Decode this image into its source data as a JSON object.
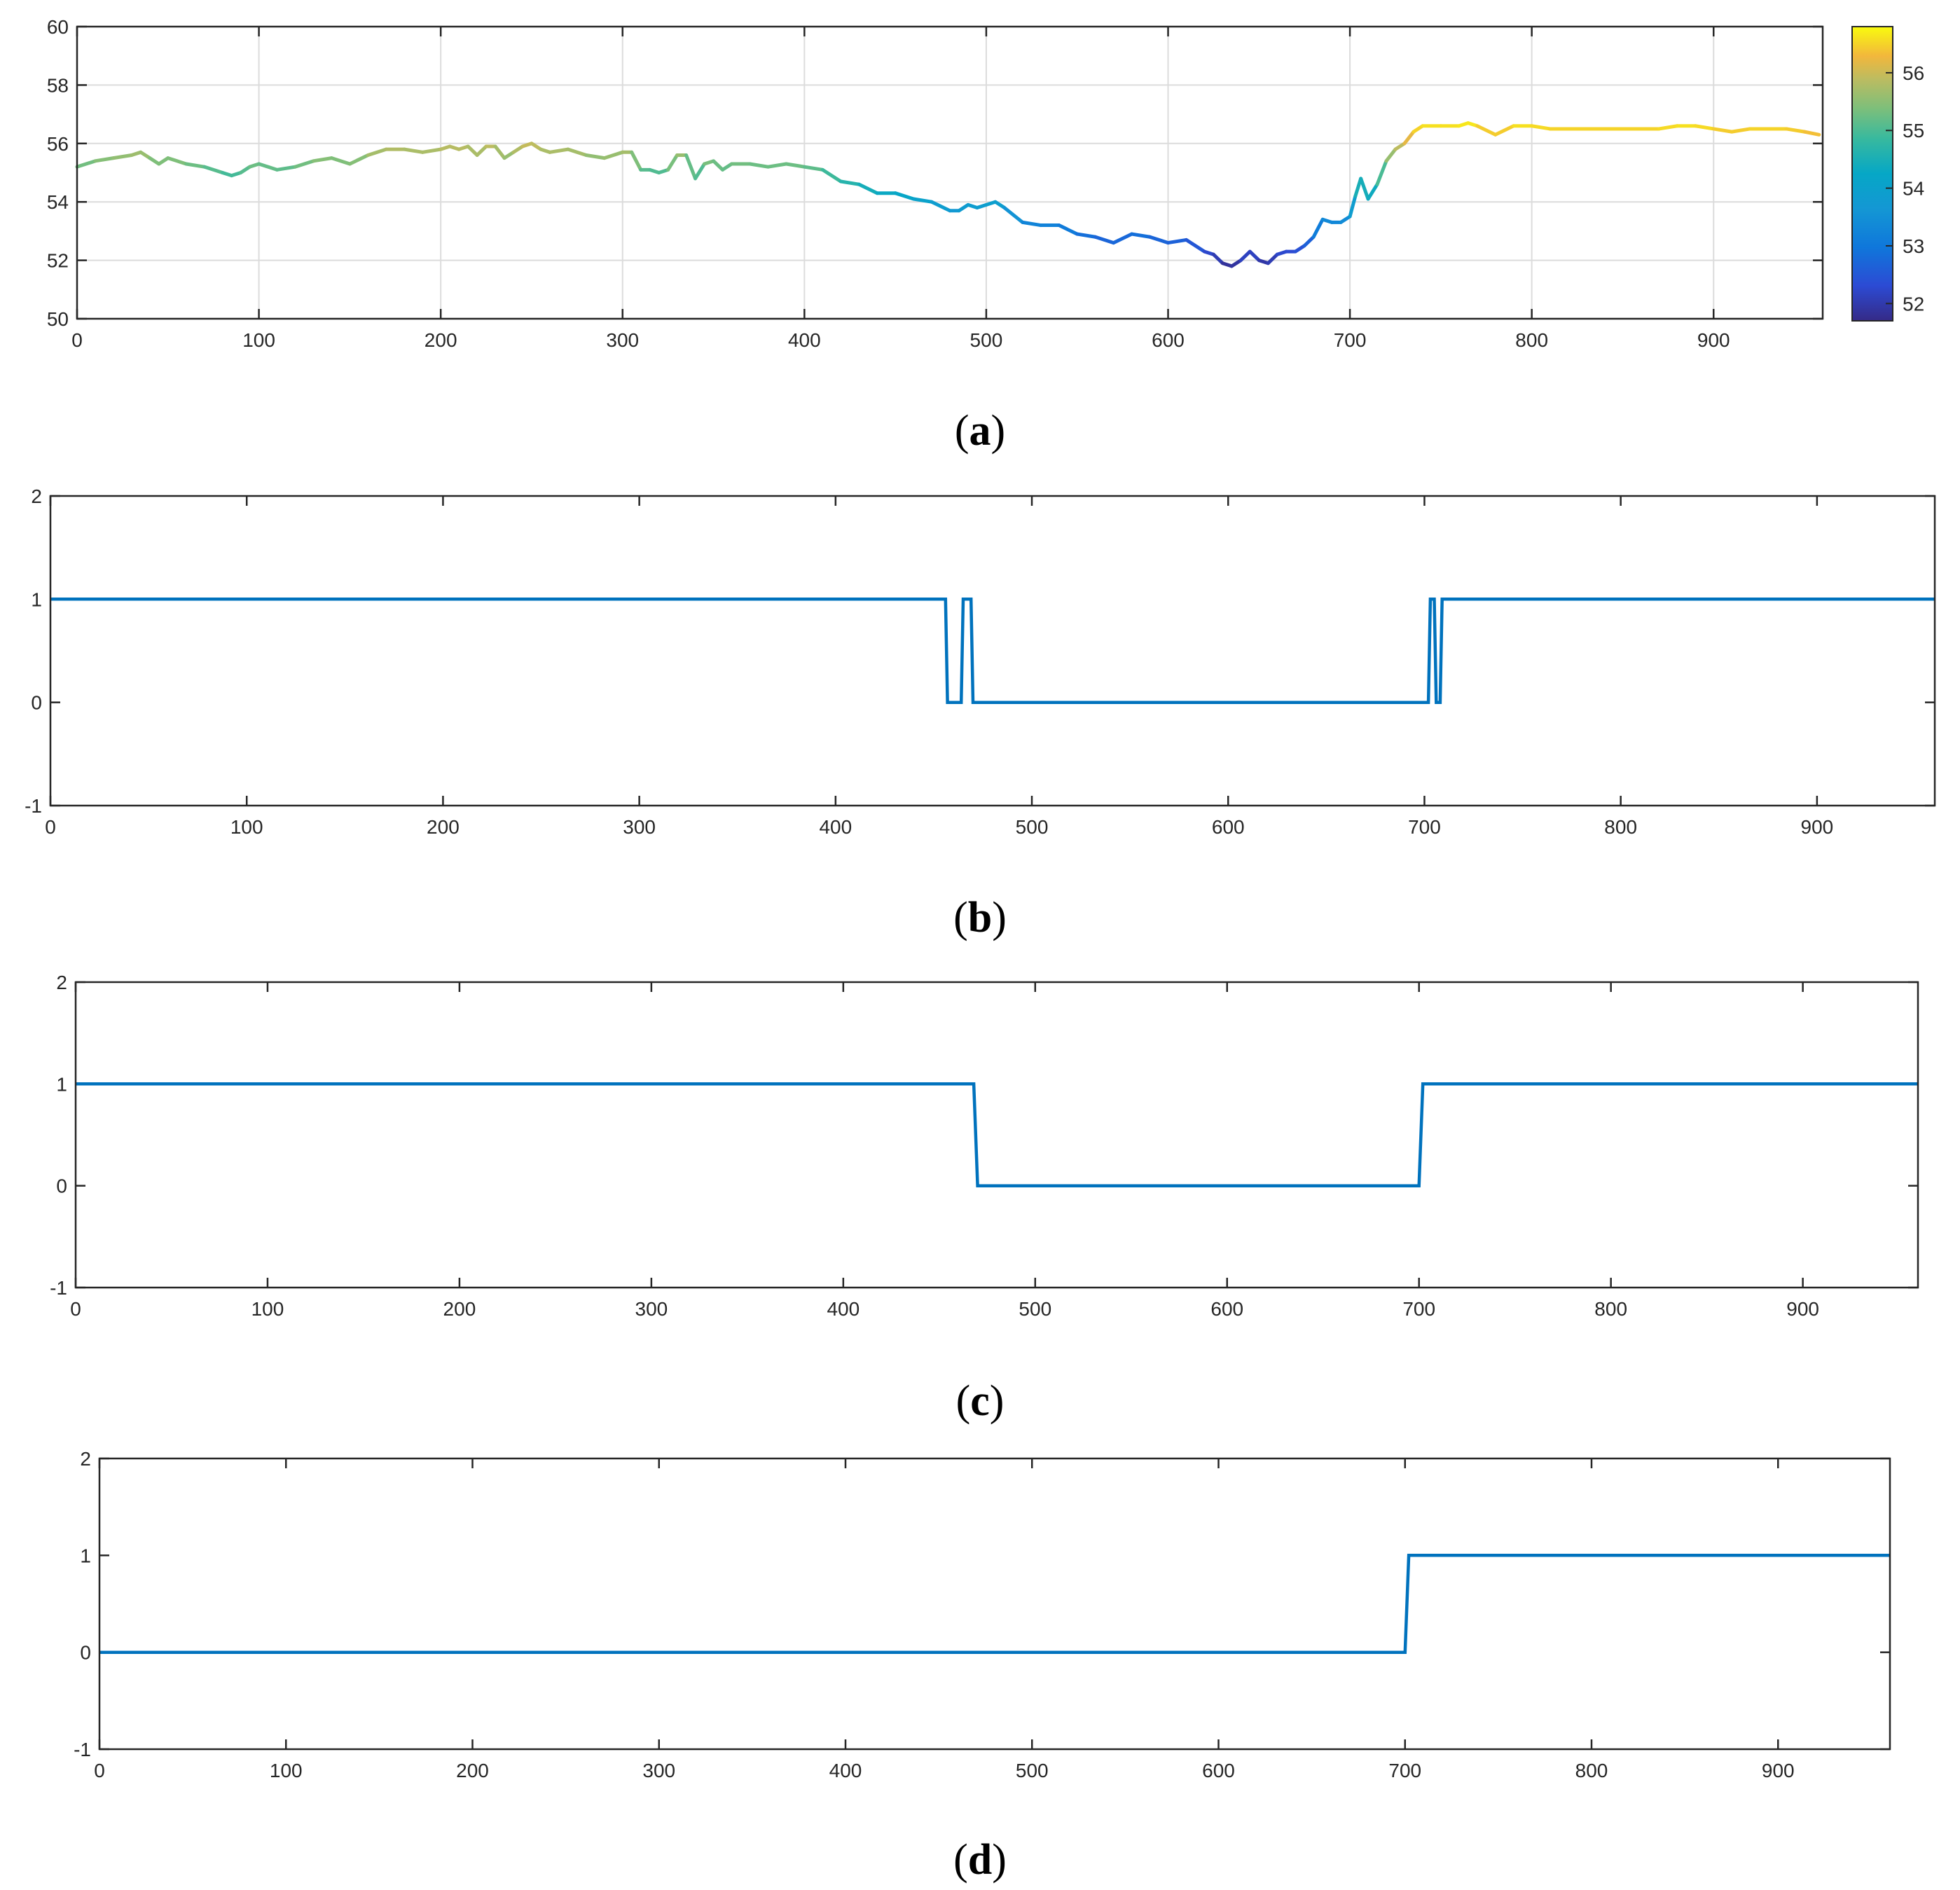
{
  "figure_labels": {
    "a": "a",
    "b": "b",
    "c": "c",
    "d": "d"
  },
  "colors": {
    "line": "#0072BD",
    "grid": "#dcdcdc",
    "axis": "#262626"
  },
  "chart_data": [
    {
      "panel": "a",
      "type": "line",
      "colormap": "parula",
      "grid": true,
      "xlim": [
        0,
        960
      ],
      "ylim": [
        50,
        60
      ],
      "x_ticks": [
        0,
        100,
        200,
        300,
        400,
        500,
        600,
        700,
        800,
        900
      ],
      "y_ticks": [
        50,
        52,
        54,
        56,
        58,
        60
      ],
      "colorbar": {
        "ticks": [
          52,
          53,
          54,
          55,
          56
        ],
        "range": [
          51.7,
          56.8
        ]
      },
      "x": [
        0,
        10,
        20,
        30,
        35,
        40,
        45,
        50,
        60,
        70,
        80,
        85,
        90,
        95,
        100,
        110,
        120,
        130,
        140,
        150,
        160,
        170,
        180,
        190,
        200,
        205,
        210,
        215,
        220,
        225,
        230,
        235,
        240,
        245,
        250,
        255,
        260,
        270,
        280,
        290,
        300,
        305,
        310,
        315,
        320,
        325,
        330,
        335,
        340,
        345,
        350,
        355,
        360,
        370,
        380,
        390,
        400,
        410,
        420,
        430,
        440,
        450,
        460,
        470,
        480,
        485,
        490,
        495,
        500,
        505,
        510,
        520,
        530,
        540,
        550,
        560,
        570,
        580,
        590,
        600,
        610,
        620,
        625,
        630,
        635,
        640,
        645,
        650,
        655,
        660,
        665,
        670,
        675,
        680,
        685,
        690,
        695,
        700,
        703,
        706,
        710,
        715,
        720,
        725,
        730,
        735,
        740,
        750,
        760,
        765,
        770,
        780,
        790,
        800,
        810,
        820,
        830,
        840,
        850,
        860,
        870,
        880,
        890,
        900,
        910,
        920,
        930,
        940,
        950,
        958
      ],
      "y": [
        55.2,
        55.4,
        55.5,
        55.6,
        55.7,
        55.5,
        55.3,
        55.5,
        55.3,
        55.2,
        55.0,
        54.9,
        55.0,
        55.2,
        55.3,
        55.1,
        55.2,
        55.4,
        55.5,
        55.3,
        55.6,
        55.8,
        55.8,
        55.7,
        55.8,
        55.9,
        55.8,
        55.9,
        55.6,
        55.9,
        55.9,
        55.5,
        55.7,
        55.9,
        56.0,
        55.8,
        55.7,
        55.8,
        55.6,
        55.5,
        55.7,
        55.7,
        55.1,
        55.1,
        55.0,
        55.1,
        55.6,
        55.6,
        54.8,
        55.3,
        55.4,
        55.1,
        55.3,
        55.3,
        55.2,
        55.3,
        55.2,
        55.1,
        54.7,
        54.6,
        54.3,
        54.3,
        54.1,
        54.0,
        53.7,
        53.7,
        53.9,
        53.8,
        53.9,
        54.0,
        53.8,
        53.3,
        53.2,
        53.2,
        52.9,
        52.8,
        52.6,
        52.9,
        52.8,
        52.6,
        52.7,
        52.3,
        52.2,
        51.9,
        51.8,
        52.0,
        52.3,
        52.0,
        51.9,
        52.2,
        52.3,
        52.3,
        52.5,
        52.8,
        53.4,
        53.3,
        53.3,
        53.5,
        54.2,
        54.8,
        54.1,
        54.6,
        55.4,
        55.8,
        56.0,
        56.4,
        56.6,
        56.6,
        56.6,
        56.7,
        56.6,
        56.3,
        56.6,
        56.6,
        56.5,
        56.5,
        56.5,
        56.5,
        56.5,
        56.5,
        56.5,
        56.6,
        56.6,
        56.5,
        56.4,
        56.5,
        56.5,
        56.5,
        56.4,
        56.3
      ]
    },
    {
      "panel": "b",
      "type": "line",
      "grid": false,
      "xlim": [
        0,
        960
      ],
      "ylim": [
        -1,
        2
      ],
      "x_ticks": [
        0,
        100,
        200,
        300,
        400,
        500,
        600,
        700,
        800,
        900
      ],
      "y_ticks": [
        -1,
        0,
        1,
        2
      ],
      "x": [
        0,
        456,
        457,
        460,
        461,
        464,
        465,
        469,
        470,
        702,
        703,
        705,
        706,
        708,
        709,
        960
      ],
      "y": [
        1,
        1,
        0,
        0,
        0,
        0,
        1,
        1,
        0,
        0,
        1,
        1,
        0,
        0,
        1,
        1
      ]
    },
    {
      "panel": "c",
      "type": "line",
      "grid": false,
      "xlim": [
        0,
        960
      ],
      "ylim": [
        -1,
        2
      ],
      "x_ticks": [
        0,
        100,
        200,
        300,
        400,
        500,
        600,
        700,
        800,
        900
      ],
      "y_ticks": [
        -1,
        0,
        1,
        2
      ],
      "x": [
        0,
        468,
        470,
        700,
        702,
        960
      ],
      "y": [
        1,
        1,
        0,
        0,
        1,
        1
      ]
    },
    {
      "panel": "d",
      "type": "line",
      "grid": false,
      "xlim": [
        0,
        960
      ],
      "ylim": [
        -1,
        2
      ],
      "x_ticks": [
        0,
        100,
        200,
        300,
        400,
        500,
        600,
        700,
        800,
        900
      ],
      "y_ticks": [
        -1,
        0,
        1,
        2
      ],
      "x": [
        0,
        700,
        702,
        960
      ],
      "y": [
        0,
        0,
        1,
        1
      ]
    }
  ]
}
